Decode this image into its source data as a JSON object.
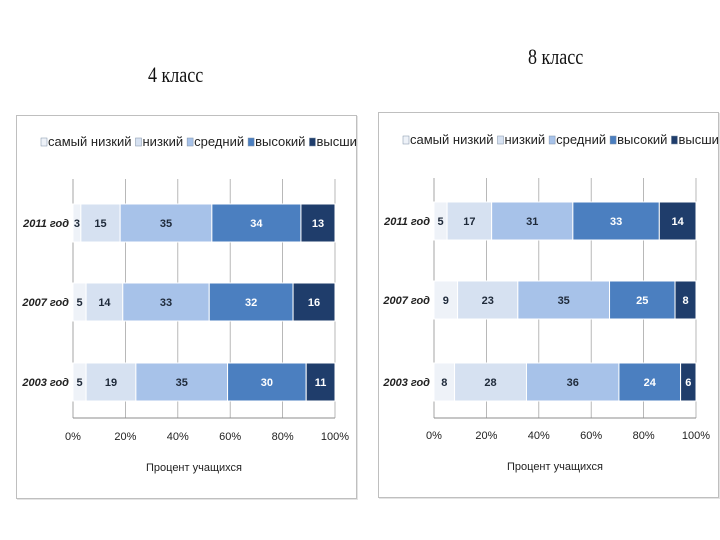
{
  "slide": {
    "title_left": "4 класс",
    "title_right": "8 класс"
  },
  "chart_data": [
    {
      "type": "bar",
      "orientation": "horizontal",
      "stacked": "percent",
      "title": "4 класс",
      "categories": [
        "2011 год",
        "2007 год",
        "2003 год"
      ],
      "series": [
        {
          "name": "самый низкий",
          "color": "#eef2f8",
          "values": [
            3,
            5,
            5
          ]
        },
        {
          "name": "низкий",
          "color": "#d6e1f1",
          "values": [
            15,
            14,
            19
          ]
        },
        {
          "name": "средний",
          "color": "#a7c2e9",
          "values": [
            35,
            33,
            35
          ]
        },
        {
          "name": "высокий",
          "color": "#4b7fc0",
          "values": [
            34,
            32,
            30
          ]
        },
        {
          "name": "высший",
          "color": "#1f3d6b",
          "values": [
            13,
            16,
            11
          ]
        }
      ],
      "xticks": [
        "0%",
        "20%",
        "40%",
        "60%",
        "80%",
        "100%"
      ],
      "xlim": [
        0,
        100
      ],
      "xlabel": "Процент учащихся",
      "legend_position": "top",
      "grid": true
    },
    {
      "type": "bar",
      "orientation": "horizontal",
      "stacked": "percent",
      "title": "8 класс",
      "categories": [
        "2011 год",
        "2007 год",
        "2003 год"
      ],
      "series": [
        {
          "name": "самый низкий",
          "color": "#eef2f8",
          "values": [
            5,
            9,
            8
          ]
        },
        {
          "name": "низкий",
          "color": "#d6e1f1",
          "values": [
            17,
            23,
            28
          ]
        },
        {
          "name": "средний",
          "color": "#a7c2e9",
          "values": [
            31,
            35,
            36
          ]
        },
        {
          "name": "высокий",
          "color": "#4b7fc0",
          "values": [
            33,
            25,
            24
          ]
        },
        {
          "name": "высший",
          "color": "#1f3d6b",
          "values": [
            14,
            8,
            6
          ]
        }
      ],
      "xticks": [
        "0%",
        "20%",
        "40%",
        "60%",
        "80%",
        "100%"
      ],
      "xlim": [
        0,
        100
      ],
      "xlabel": "Процент учащихся",
      "legend_position": "top",
      "grid": true
    }
  ]
}
